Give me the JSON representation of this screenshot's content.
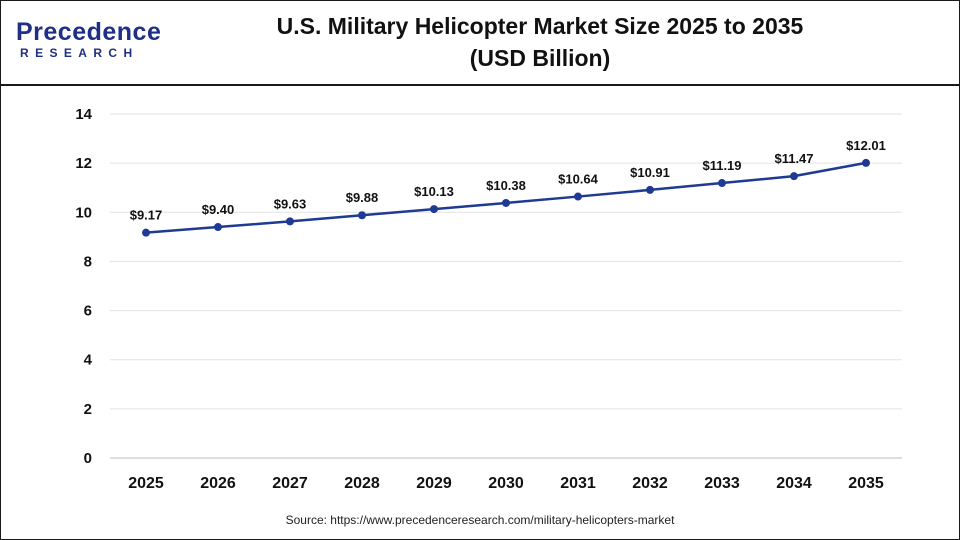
{
  "header": {
    "logo_main": "Precedence",
    "logo_sub": "RESEARCH",
    "title_line1": "U.S. Military Helicopter Market Size 2025 to 2035",
    "title_line2": "(USD Billion)"
  },
  "footer": {
    "source": "Source: https://www.precedenceresearch.com/military-helicopters-market"
  },
  "colors": {
    "line": "#1f3a93",
    "grid": "#e3e3e3",
    "brand": "#1f2f86"
  },
  "chart_data": {
    "type": "line",
    "title": "U.S. Military Helicopter Market Size 2025 to 2035 (USD Billion)",
    "xlabel": "",
    "ylabel": "",
    "categories": [
      "2025",
      "2026",
      "2027",
      "2028",
      "2029",
      "2030",
      "2031",
      "2032",
      "2033",
      "2034",
      "2035"
    ],
    "values": [
      9.17,
      9.4,
      9.63,
      9.88,
      10.13,
      10.38,
      10.64,
      10.91,
      11.19,
      11.47,
      12.01
    ],
    "data_labels": [
      "$9.17",
      "$9.40",
      "$9.63",
      "$9.88",
      "$10.13",
      "$10.38",
      "$10.64",
      "$10.91",
      "$11.19",
      "$11.47",
      "$12.01"
    ],
    "ylim": [
      0,
      14
    ],
    "yticks": [
      "0",
      "2",
      "4",
      "6",
      "8",
      "10",
      "12",
      "14"
    ],
    "grid": true,
    "legend": "none"
  }
}
